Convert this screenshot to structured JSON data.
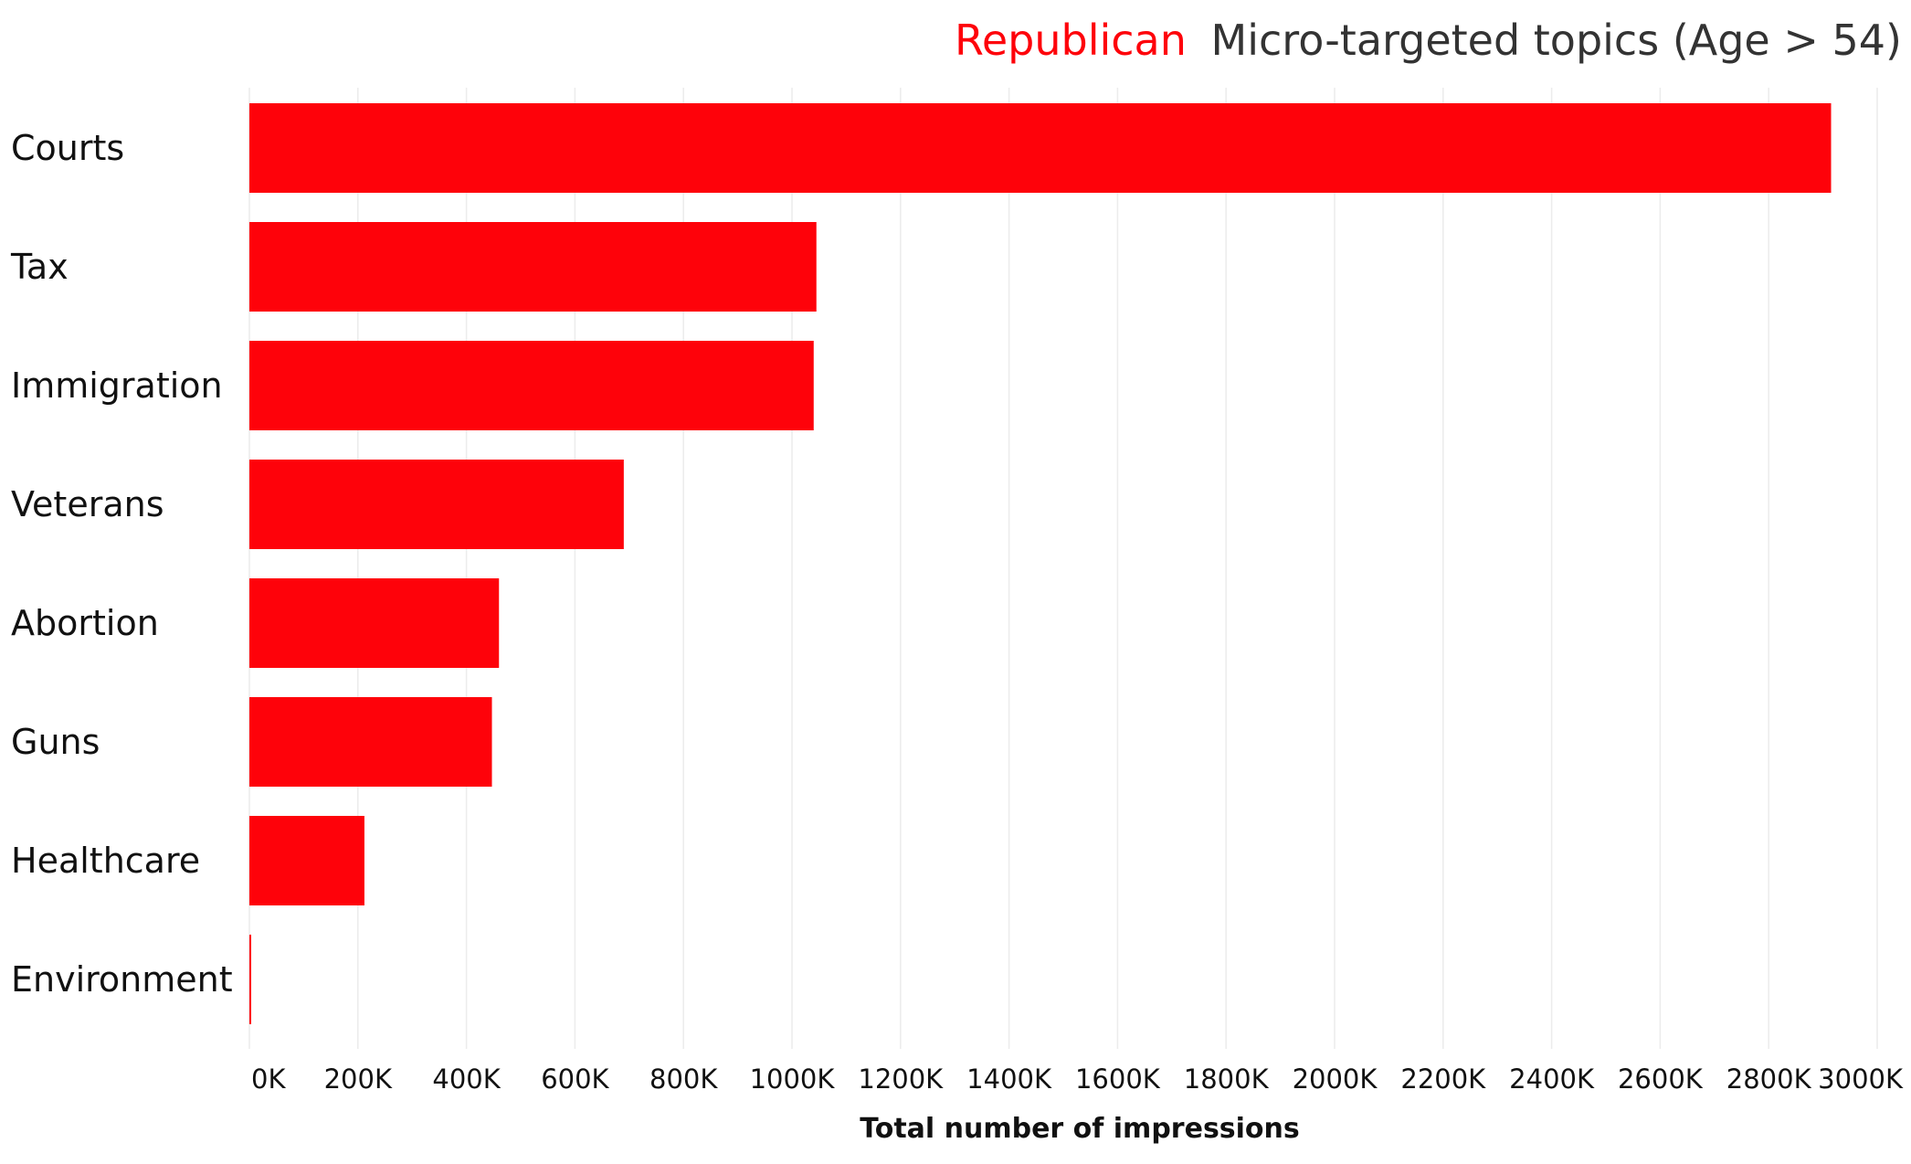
{
  "chart_data": {
    "type": "bar",
    "orientation": "horizontal",
    "title": {
      "highlight": "Republican",
      "rest": "Micro-targeted topics (Age > 54)"
    },
    "xlabel": "Total number of impressions",
    "ylabel": "",
    "categories": [
      "Courts",
      "Tax",
      "Immigration",
      "Veterans",
      "Abortion",
      "Guns",
      "Healthcare",
      "Environment"
    ],
    "values": [
      2915000,
      1045000,
      1040000,
      690000,
      460000,
      447000,
      212000,
      3000
    ],
    "xlim": [
      0,
      3000000
    ],
    "xticks": [
      0,
      200000,
      400000,
      600000,
      800000,
      1000000,
      1200000,
      1400000,
      1600000,
      1800000,
      2000000,
      2200000,
      2400000,
      2600000,
      2800000,
      3000000
    ],
    "xtick_labels": [
      "0K",
      "200K",
      "400K",
      "600K",
      "800K",
      "1000K",
      "1200K",
      "1400K",
      "1600K",
      "1800K",
      "2000K",
      "2200K",
      "2400K",
      "2600K",
      "2800K",
      "3000K"
    ],
    "grid": true,
    "colors": {
      "bar": "#fe020a",
      "highlight": "#fe020a",
      "title_text": "#333333",
      "label_text": "#111111",
      "grid": "#ececec"
    }
  }
}
